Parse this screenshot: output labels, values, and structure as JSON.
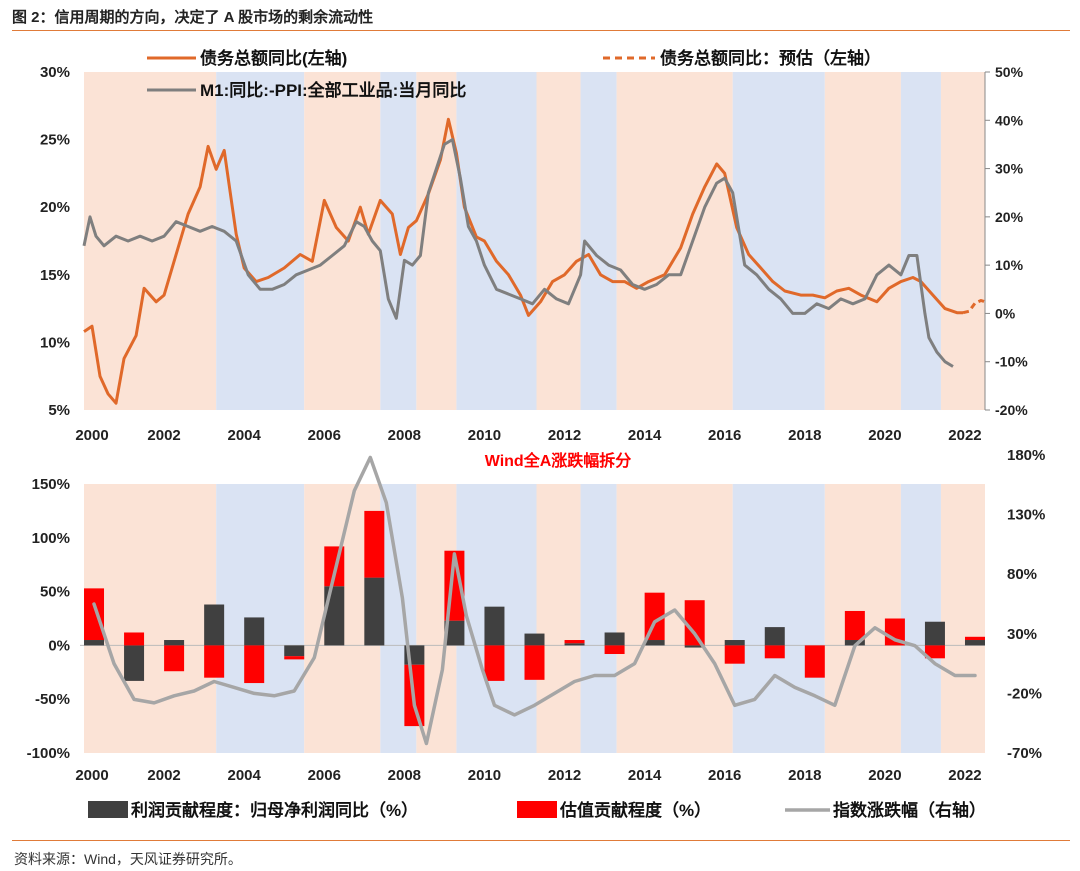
{
  "figure_title": "图 2：信用周期的方向，决定了 A 股市场的剩余流动性",
  "source": "资料来源：Wind，天风证券研究所。",
  "colors": {
    "orange": "#E0692A",
    "gray": "#7F7F7F",
    "dark": "#404040",
    "red": "#FF0000",
    "light_gray": "#A6A6A6",
    "band_pink": "#FBE3D6",
    "band_blue": "#DAE3F3"
  },
  "chart_data": [
    {
      "type": "line",
      "title": "",
      "x_range": [
        1999.9,
        2022.5
      ],
      "x_ticks": [
        "2000",
        "2002",
        "2004",
        "2006",
        "2008",
        "2010",
        "2012",
        "2014",
        "2016",
        "2018",
        "2020",
        "2022"
      ],
      "y_left": {
        "range": [
          5,
          30
        ],
        "ticks": [
          "5%",
          "10%",
          "15%",
          "20%",
          "25%",
          "30%"
        ]
      },
      "y_right": {
        "range": [
          -20,
          50
        ],
        "ticks": [
          "-20%",
          "-10%",
          "0%",
          "10%",
          "20%",
          "30%",
          "40%",
          "50%"
        ]
      },
      "shading": [
        {
          "from": 2000.0,
          "to": 2003.3,
          "color": "pink"
        },
        {
          "from": 2003.3,
          "to": 2005.5,
          "color": "blue"
        },
        {
          "from": 2005.5,
          "to": 2007.4,
          "color": "pink"
        },
        {
          "from": 2007.4,
          "to": 2008.3,
          "color": "blue"
        },
        {
          "from": 2008.3,
          "to": 2009.3,
          "color": "pink"
        },
        {
          "from": 2009.3,
          "to": 2011.3,
          "color": "blue"
        },
        {
          "from": 2011.3,
          "to": 2012.4,
          "color": "pink"
        },
        {
          "from": 2012.4,
          "to": 2013.3,
          "color": "blue"
        },
        {
          "from": 2013.3,
          "to": 2016.2,
          "color": "pink"
        },
        {
          "from": 2016.2,
          "to": 2018.5,
          "color": "blue"
        },
        {
          "from": 2018.5,
          "to": 2020.4,
          "color": "pink"
        },
        {
          "from": 2020.4,
          "to": 2021.4,
          "color": "blue"
        },
        {
          "from": 2021.4,
          "to": 2022.5,
          "color": "pink"
        }
      ],
      "legend": [
        {
          "label": "债务总额同比(左轴)",
          "style": "solid",
          "color": "orange"
        },
        {
          "label": "债务总额同比：预估（左轴）",
          "style": "dashed",
          "color": "orange"
        },
        {
          "label": "M1:同比:-PPI:全部工业品:当月同比",
          "style": "solid",
          "color": "gray"
        }
      ],
      "series": [
        {
          "name": "债务总额同比(左轴)",
          "axis": "left",
          "color": "orange",
          "x": [
            2000.0,
            2000.2,
            2000.4,
            2000.6,
            2000.8,
            2001.0,
            2001.3,
            2001.5,
            2001.8,
            2002.0,
            2002.3,
            2002.6,
            2002.9,
            2003.1,
            2003.3,
            2003.5,
            2003.8,
            2004.0,
            2004.3,
            2004.6,
            2005.0,
            2005.4,
            2005.7,
            2006.0,
            2006.3,
            2006.6,
            2006.9,
            2007.1,
            2007.4,
            2007.7,
            2007.9,
            2008.1,
            2008.3,
            2008.6,
            2008.9,
            2009.1,
            2009.3,
            2009.5,
            2009.8,
            2010.0,
            2010.3,
            2010.6,
            2010.9,
            2011.1,
            2011.4,
            2011.7,
            2012.0,
            2012.3,
            2012.6,
            2012.9,
            2013.2,
            2013.5,
            2013.8,
            2014.1,
            2014.5,
            2014.9,
            2015.2,
            2015.5,
            2015.8,
            2016.0,
            2016.3,
            2016.6,
            2016.9,
            2017.2,
            2017.5,
            2017.9,
            2018.2,
            2018.5,
            2018.8,
            2019.1,
            2019.4,
            2019.8,
            2020.1,
            2020.4,
            2020.7,
            2020.9,
            2021.2,
            2021.5,
            2021.8,
            2021.95
          ],
          "values": [
            10.8,
            11.2,
            7.5,
            6.2,
            5.5,
            8.8,
            10.5,
            14.0,
            13.0,
            13.5,
            16.5,
            19.5,
            21.5,
            24.5,
            22.8,
            24.2,
            18.0,
            15.5,
            14.5,
            14.8,
            15.5,
            16.5,
            16.0,
            20.5,
            18.5,
            17.5,
            20.0,
            18.0,
            20.5,
            19.5,
            16.5,
            18.5,
            19.0,
            21.0,
            23.5,
            26.5,
            24.0,
            20.0,
            17.8,
            17.5,
            16.0,
            15.0,
            13.5,
            12.0,
            13.0,
            14.5,
            15.0,
            16.0,
            16.5,
            15.0,
            14.5,
            14.5,
            14.0,
            14.5,
            15.0,
            17.0,
            19.5,
            21.5,
            23.2,
            22.5,
            18.5,
            16.5,
            15.5,
            14.5,
            13.8,
            13.5,
            13.5,
            13.3,
            13.8,
            14.0,
            13.5,
            13.0,
            14.0,
            14.5,
            14.8,
            14.5,
            13.5,
            12.5,
            12.2,
            12.2
          ]
        },
        {
          "name": "债务总额同比：预估（左轴）",
          "axis": "left",
          "color": "orange",
          "dashed": true,
          "x": [
            2021.95,
            2022.1,
            2022.25,
            2022.4,
            2022.5
          ],
          "values": [
            12.2,
            12.3,
            12.9,
            13.1,
            13.0
          ]
        },
        {
          "name": "M1:同比:-PPI:全部工业品:当月同比",
          "axis": "right",
          "color": "gray",
          "x": [
            2000.0,
            2000.15,
            2000.3,
            2000.5,
            2000.8,
            2001.1,
            2001.4,
            2001.7,
            2002.0,
            2002.3,
            2002.6,
            2002.9,
            2003.2,
            2003.5,
            2003.8,
            2004.1,
            2004.4,
            2004.7,
            2005.0,
            2005.3,
            2005.6,
            2005.9,
            2006.2,
            2006.5,
            2006.8,
            2007.0,
            2007.2,
            2007.4,
            2007.6,
            2007.8,
            2008.0,
            2008.2,
            2008.4,
            2008.6,
            2008.8,
            2009.0,
            2009.2,
            2009.4,
            2009.6,
            2009.8,
            2010.0,
            2010.3,
            2010.6,
            2010.9,
            2011.2,
            2011.5,
            2011.8,
            2012.1,
            2012.4,
            2012.5,
            2012.8,
            2013.1,
            2013.4,
            2013.7,
            2014.0,
            2014.3,
            2014.6,
            2014.9,
            2015.2,
            2015.5,
            2015.8,
            2016.0,
            2016.2,
            2016.4,
            2016.5,
            2016.8,
            2017.1,
            2017.4,
            2017.7,
            2018.0,
            2018.3,
            2018.6,
            2018.9,
            2019.2,
            2019.5,
            2019.8,
            2020.1,
            2020.4,
            2020.6,
            2020.8,
            2021.0,
            2021.1,
            2021.3,
            2021.5,
            2021.7
          ],
          "values": [
            14,
            20,
            16,
            14,
            16,
            15,
            16,
            15,
            16,
            19,
            18,
            17,
            18,
            17,
            15,
            8,
            5,
            5,
            6,
            8,
            9,
            10,
            12,
            14,
            19,
            18,
            15,
            13,
            3,
            -1,
            11,
            10,
            12,
            25,
            30,
            35,
            36,
            28,
            18,
            15,
            10,
            5,
            4,
            3,
            2,
            5,
            3,
            2,
            8,
            15,
            12,
            10,
            9,
            6,
            5,
            6,
            8,
            8,
            15,
            22,
            27,
            28,
            25,
            15,
            10,
            8,
            5,
            3,
            0,
            0,
            2,
            1,
            3,
            2,
            3,
            8,
            10,
            8,
            12,
            12,
            0,
            -5,
            -8,
            -10,
            -11
          ]
        }
      ]
    },
    {
      "type": "bar",
      "title": "Wind全A涨跌幅拆分",
      "categories": [
        "2000",
        "2001",
        "2002",
        "2003",
        "2004",
        "2005",
        "2006",
        "2007",
        "2008",
        "2009",
        "2010",
        "2011",
        "2012",
        "2013",
        "2014",
        "2015",
        "2016",
        "2017",
        "2018",
        "2019",
        "2020",
        "2021",
        "2022"
      ],
      "x_ticks": [
        "2000",
        "2002",
        "2004",
        "2006",
        "2008",
        "2010",
        "2012",
        "2014",
        "2016",
        "2018",
        "2020",
        "2022"
      ],
      "y_left": {
        "range": [
          -100,
          150
        ],
        "ticks": [
          "-100%",
          "-50%",
          "0%",
          "50%",
          "100%",
          "150%"
        ]
      },
      "y_right": {
        "range": [
          -70,
          180
        ],
        "ticks": [
          "-70%",
          "-20%",
          "30%",
          "80%",
          "130%",
          "180%"
        ]
      },
      "legend": [
        {
          "label": "利润贡献程度：归母净利润同比（%）",
          "color": "dark",
          "type": "bar"
        },
        {
          "label": "估值贡献程度（%）",
          "color": "red",
          "type": "bar"
        },
        {
          "label": "指数涨跌幅（右轴）",
          "color": "light_gray",
          "type": "line"
        }
      ],
      "series": [
        {
          "name": "利润贡献程度：归母净利润同比（%）",
          "color": "dark",
          "values": [
            5,
            -33,
            5,
            38,
            26,
            -10,
            55,
            63,
            -18,
            23,
            36,
            11,
            2,
            12,
            5,
            -2,
            5,
            17,
            0,
            5,
            0,
            22,
            5
          ]
        },
        {
          "name": "估值贡献程度（%）",
          "color": "red",
          "values": [
            48,
            12,
            -24,
            -30,
            -35,
            -3,
            37,
            62,
            -57,
            65,
            -33,
            -32,
            3,
            -8,
            44,
            42,
            -17,
            -12,
            -30,
            27,
            25,
            -12,
            3
          ]
        },
        {
          "name": "指数涨跌幅（右轴）",
          "axis": "right",
          "color": "light_gray",
          "type": "line",
          "x": [
            2000.0,
            2000.5,
            2001.0,
            2001.5,
            2002.0,
            2002.5,
            2003.0,
            2003.5,
            2004.0,
            2004.5,
            2005.0,
            2005.5,
            2006.0,
            2006.5,
            2006.9,
            2007.3,
            2007.7,
            2008.0,
            2008.3,
            2008.7,
            2009.0,
            2009.3,
            2009.7,
            2010.0,
            2010.5,
            2011.0,
            2011.5,
            2012.0,
            2012.5,
            2013.0,
            2013.5,
            2014.0,
            2014.5,
            2015.0,
            2015.5,
            2016.0,
            2016.5,
            2017.0,
            2017.5,
            2018.0,
            2018.5,
            2019.0,
            2019.5,
            2020.0,
            2020.5,
            2021.0,
            2021.5,
            2022.0
          ],
          "values": [
            55,
            5,
            -25,
            -28,
            -22,
            -18,
            -10,
            -15,
            -20,
            -22,
            -18,
            10,
            80,
            150,
            178,
            140,
            60,
            -30,
            -62,
            0,
            97,
            45,
            0,
            -30,
            -38,
            -30,
            -20,
            -10,
            -5,
            -5,
            5,
            40,
            50,
            30,
            5,
            -30,
            -25,
            -5,
            -15,
            -22,
            -30,
            20,
            35,
            25,
            20,
            5,
            -5,
            -5
          ]
        }
      ]
    }
  ]
}
